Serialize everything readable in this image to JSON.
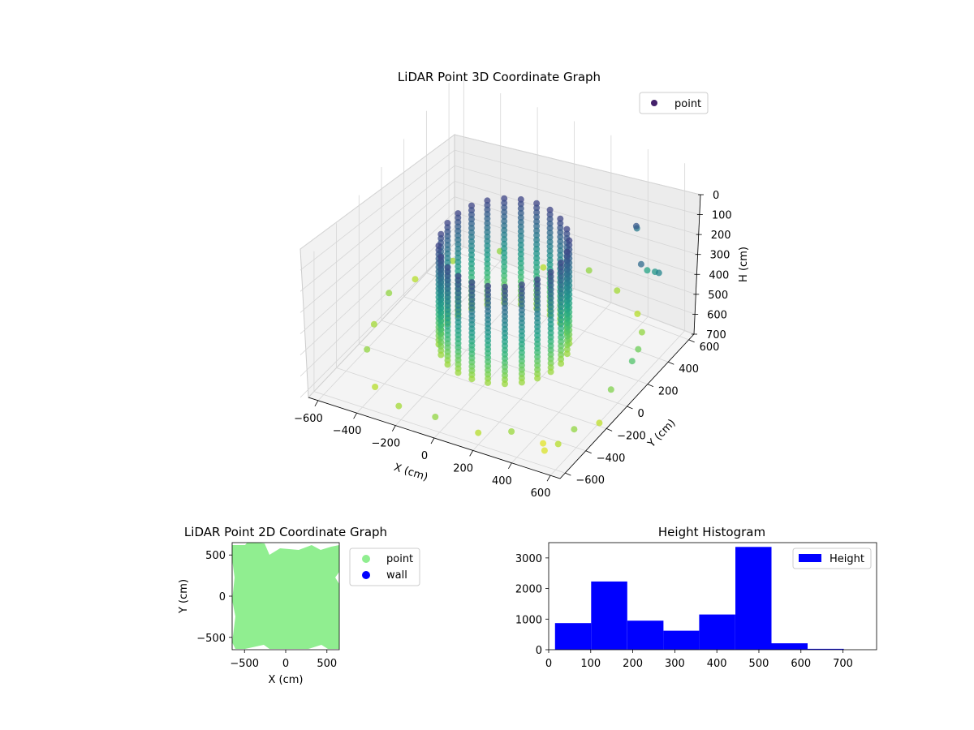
{
  "chart_data": [
    {
      "type": "scatter",
      "projection": "3d",
      "title": "LiDAR Point 3D Coordinate Graph",
      "xlabel": "X (cm)",
      "ylabel": "Y (cm)",
      "zlabel": "H (cm)",
      "xticks": [
        "−600",
        "−400",
        "−200",
        "0",
        "200",
        "400",
        "600"
      ],
      "yticks": [
        "−600",
        "−400",
        "−200",
        "0",
        "200",
        "400",
        "600"
      ],
      "zticks": [
        "0",
        "100",
        "200",
        "300",
        "400",
        "500",
        "600",
        "700"
      ],
      "xlim": [
        -650,
        650
      ],
      "ylim": [
        -650,
        650
      ],
      "zlim": [
        0,
        750
      ],
      "z_inverted": true,
      "colormap": "viridis",
      "grid": true,
      "legend": {
        "position": "top-right",
        "entries": [
          {
            "label": "point",
            "color": "#44206a"
          }
        ]
      },
      "series": [
        {
          "name": "point",
          "description": "ring of vertical columns of points (radius ~250-300 cm) plus scattered points out to ~650 cm",
          "columns": [
            {
              "angle_deg": 0,
              "radius": 300
            },
            {
              "angle_deg": 15,
              "radius": 300
            },
            {
              "angle_deg": 30,
              "radius": 300
            },
            {
              "angle_deg": 45,
              "radius": 300
            },
            {
              "angle_deg": 60,
              "radius": 300
            },
            {
              "angle_deg": 75,
              "radius": 300
            },
            {
              "angle_deg": 90,
              "radius": 300
            },
            {
              "angle_deg": 105,
              "radius": 300
            },
            {
              "angle_deg": 120,
              "radius": 300
            },
            {
              "angle_deg": 135,
              "radius": 300
            },
            {
              "angle_deg": 150,
              "radius": 300
            },
            {
              "angle_deg": 165,
              "radius": 300
            },
            {
              "angle_deg": 180,
              "radius": 300
            },
            {
              "angle_deg": 195,
              "radius": 300
            },
            {
              "angle_deg": 210,
              "radius": 300
            },
            {
              "angle_deg": 225,
              "radius": 300
            },
            {
              "angle_deg": 240,
              "radius": 300
            },
            {
              "angle_deg": 255,
              "radius": 300
            },
            {
              "angle_deg": 270,
              "radius": 300
            },
            {
              "angle_deg": 285,
              "radius": 300
            },
            {
              "angle_deg": 300,
              "radius": 300
            },
            {
              "angle_deg": 315,
              "radius": 300
            },
            {
              "angle_deg": 330,
              "radius": 300
            },
            {
              "angle_deg": 345,
              "radius": 300
            }
          ],
          "column_height_range": [
            150,
            620
          ],
          "scatter_points": [
            {
              "x": 640,
              "y": -250,
              "z": 650
            },
            {
              "x": 600,
              "y": -420,
              "z": 600
            },
            {
              "x": 560,
              "y": -500,
              "z": 640
            },
            {
              "x": 500,
              "y": -520,
              "z": 680
            },
            {
              "x": 620,
              "y": -100,
              "z": 580
            },
            {
              "x": 650,
              "y": 50,
              "z": 520
            },
            {
              "x": 600,
              "y": 200,
              "z": 560
            },
            {
              "x": 520,
              "y": 380,
              "z": 600
            },
            {
              "x": 400,
              "y": 550,
              "z": 640
            },
            {
              "x": 250,
              "y": 620,
              "z": 620
            },
            {
              "x": 80,
              "y": 650,
              "z": 600
            },
            {
              "x": -150,
              "y": 620,
              "z": 640
            },
            {
              "x": -350,
              "y": 560,
              "z": 600
            },
            {
              "x": -520,
              "y": 420,
              "z": 620
            },
            {
              "x": -620,
              "y": 250,
              "z": 640
            },
            {
              "x": -640,
              "y": 50,
              "z": 600
            },
            {
              "x": -600,
              "y": -150,
              "z": 620
            },
            {
              "x": -520,
              "y": -350,
              "z": 600
            },
            {
              "x": -380,
              "y": -520,
              "z": 640
            },
            {
              "x": -200,
              "y": -620,
              "z": 620
            },
            {
              "x": 0,
              "y": -640,
              "z": 600
            },
            {
              "x": 200,
              "y": -600,
              "z": 640
            },
            {
              "x": 350,
              "y": -560,
              "z": 610
            },
            {
              "x": 460,
              "y": -460,
              "z": 690
            },
            {
              "x": 540,
              "y": 470,
              "z": 380
            },
            {
              "x": 470,
              "y": 520,
              "z": 420
            },
            {
              "x": 380,
              "y": 580,
              "z": 300
            },
            {
              "x": 560,
              "y": 300,
              "z": 250
            },
            {
              "x": 600,
              "y": 400,
              "z": 330
            },
            {
              "x": 450,
              "y": 450,
              "z": 200
            }
          ]
        }
      ]
    },
    {
      "type": "scatter",
      "title": "LiDAR Point 2D Coordinate Graph",
      "xlabel": "X (cm)",
      "ylabel": "Y (cm)",
      "xticks": [
        "−500",
        "0",
        "500"
      ],
      "yticks": [
        "−500",
        "0",
        "500"
      ],
      "xlim": [
        -650,
        650
      ],
      "ylim": [
        -650,
        650
      ],
      "legend": {
        "position": "outside-right",
        "entries": [
          {
            "label": "point",
            "color": "#90ee90"
          },
          {
            "label": "wall",
            "color": "#0000ff"
          }
        ]
      },
      "series": [
        {
          "name": "point",
          "color": "#90ee90",
          "extent": {
            "x": [
              -650,
              650
            ],
            "y": [
              -650,
              650
            ]
          }
        },
        {
          "name": "wall",
          "color": "#0000ff",
          "values": []
        }
      ]
    },
    {
      "type": "bar",
      "subtype": "histogram",
      "title": "Height Histogram",
      "xlabel": "",
      "ylabel": "",
      "xticks": [
        "0",
        "100",
        "200",
        "300",
        "400",
        "500",
        "600",
        "700"
      ],
      "yticks": [
        "0",
        "1000",
        "2000",
        "3000"
      ],
      "xlim": [
        0,
        780
      ],
      "ylim": [
        0,
        3500
      ],
      "color": "#0000ff",
      "legend": {
        "position": "top-right",
        "entries": [
          {
            "label": "Height",
            "color": "#0000ff"
          }
        ]
      },
      "bins": [
        {
          "from": 15,
          "to": 101,
          "count": 870
        },
        {
          "from": 101,
          "to": 187,
          "count": 2230
        },
        {
          "from": 187,
          "to": 273,
          "count": 950
        },
        {
          "from": 273,
          "to": 358,
          "count": 620
        },
        {
          "from": 358,
          "to": 444,
          "count": 1150
        },
        {
          "from": 444,
          "to": 530,
          "count": 3360
        },
        {
          "from": 530,
          "to": 616,
          "count": 210
        },
        {
          "from": 616,
          "to": 702,
          "count": 30
        }
      ]
    }
  ]
}
